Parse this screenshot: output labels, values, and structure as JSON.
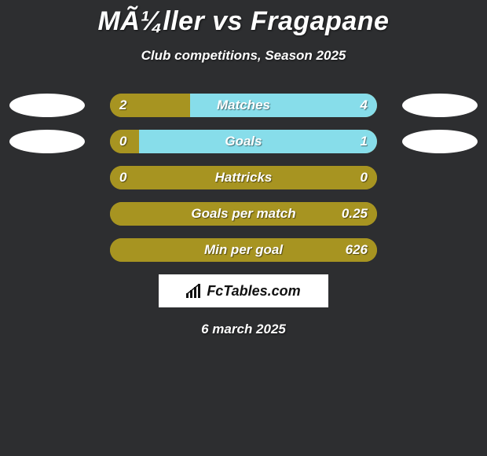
{
  "header": {
    "title": "MÃ¼ller vs Fragapane",
    "subtitle": "Club competitions, Season 2025"
  },
  "chart": {
    "type": "infographic",
    "background_color": "#2d2e30",
    "left_color": "#a79421",
    "right_color": "#87ddea",
    "text_color": "#ffffff",
    "rows": [
      {
        "label": "Matches",
        "left_value": "2",
        "right_value": "4",
        "left_pct": 30,
        "right_pct": 70,
        "show_left_badge": true,
        "show_right_badge": true
      },
      {
        "label": "Goals",
        "left_value": "0",
        "right_value": "1",
        "left_pct": 11,
        "right_pct": 89,
        "show_left_badge": true,
        "show_right_badge": true
      },
      {
        "label": "Hattricks",
        "left_value": "0",
        "right_value": "0",
        "left_pct": 100,
        "right_pct": 0,
        "show_left_badge": false,
        "show_right_badge": false
      },
      {
        "label": "Goals per match",
        "left_value": "",
        "right_value": "0.25",
        "left_pct": 100,
        "right_pct": 0,
        "show_left_badge": false,
        "show_right_badge": false
      },
      {
        "label": "Min per goal",
        "left_value": "",
        "right_value": "626",
        "left_pct": 100,
        "right_pct": 0,
        "show_left_badge": false,
        "show_right_badge": false
      }
    ]
  },
  "footer": {
    "logo_text": "FcTables.com",
    "date": "6 march 2025"
  }
}
